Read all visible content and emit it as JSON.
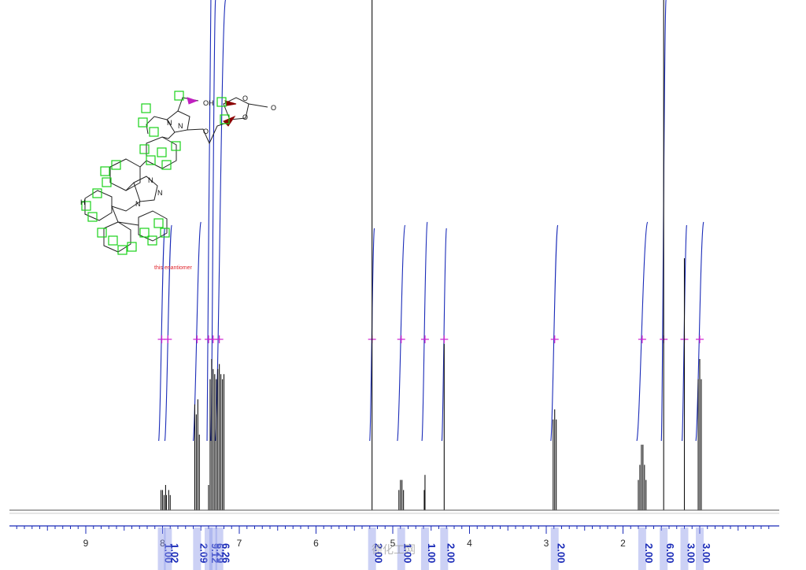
{
  "chart_data": {
    "type": "line",
    "title": "",
    "xlabel": "",
    "ylabel": "",
    "x_reversed": true,
    "xlim": [
      10.0,
      0.0
    ],
    "x_ticks": [
      {
        "value": 9,
        "label": "9"
      },
      {
        "value": 8,
        "label": "8"
      },
      {
        "value": 7,
        "label": "7"
      },
      {
        "value": 6,
        "label": "6"
      },
      {
        "value": 5,
        "label": "5"
      },
      {
        "value": 4,
        "label": "4"
      },
      {
        "value": 3,
        "label": "3"
      },
      {
        "value": 2,
        "label": "2"
      }
    ],
    "grid": false,
    "peaks": [
      {
        "ppm": 8.02,
        "h": 0.04
      },
      {
        "ppm": 8.0,
        "h": 0.04
      },
      {
        "ppm": 7.98,
        "h": 0.03
      },
      {
        "ppm": 7.96,
        "h": 0.05
      },
      {
        "ppm": 7.95,
        "h": 0.03
      },
      {
        "ppm": 7.92,
        "h": 0.04
      },
      {
        "ppm": 7.9,
        "h": 0.03
      },
      {
        "ppm": 7.58,
        "h": 0.21
      },
      {
        "ppm": 7.56,
        "h": 0.19
      },
      {
        "ppm": 7.54,
        "h": 0.22
      },
      {
        "ppm": 7.52,
        "h": 0.15
      },
      {
        "ppm": 7.4,
        "h": 0.05
      },
      {
        "ppm": 7.38,
        "h": 0.26
      },
      {
        "ppm": 7.36,
        "h": 0.3
      },
      {
        "ppm": 7.34,
        "h": 0.28
      },
      {
        "ppm": 7.32,
        "h": 0.27
      },
      {
        "ppm": 7.3,
        "h": 0.26
      },
      {
        "ppm": 7.28,
        "h": 0.28
      },
      {
        "ppm": 7.26,
        "h": 0.29
      },
      {
        "ppm": 7.24,
        "h": 0.27
      },
      {
        "ppm": 7.22,
        "h": 0.26
      },
      {
        "ppm": 7.2,
        "h": 0.27
      },
      {
        "ppm": 5.27,
        "h": 1.1
      },
      {
        "ppm": 4.92,
        "h": 0.04
      },
      {
        "ppm": 4.9,
        "h": 0.06
      },
      {
        "ppm": 4.88,
        "h": 0.06
      },
      {
        "ppm": 4.86,
        "h": 0.04
      },
      {
        "ppm": 4.59,
        "h": 0.04
      },
      {
        "ppm": 4.58,
        "h": 0.07
      },
      {
        "ppm": 4.33,
        "h": 0.33
      },
      {
        "ppm": 2.91,
        "h": 0.18
      },
      {
        "ppm": 2.89,
        "h": 0.2
      },
      {
        "ppm": 2.87,
        "h": 0.18
      },
      {
        "ppm": 1.8,
        "h": 0.06
      },
      {
        "ppm": 1.78,
        "h": 0.09
      },
      {
        "ppm": 1.76,
        "h": 0.13
      },
      {
        "ppm": 1.74,
        "h": 0.13
      },
      {
        "ppm": 1.72,
        "h": 0.09
      },
      {
        "ppm": 1.7,
        "h": 0.06
      },
      {
        "ppm": 1.47,
        "h": 1.15
      },
      {
        "ppm": 1.2,
        "h": 0.5
      },
      {
        "ppm": 1.02,
        "h": 0.26
      },
      {
        "ppm": 1.0,
        "h": 0.3
      },
      {
        "ppm": 0.98,
        "h": 0.26
      }
    ],
    "integrals": [
      {
        "ppm": 8.01,
        "from": 8.05,
        "to": 7.97,
        "label": "1.00"
      },
      {
        "ppm": 7.93,
        "from": 7.97,
        "to": 7.88,
        "label": "1.02"
      },
      {
        "ppm": 7.55,
        "from": 7.6,
        "to": 7.5,
        "label": "2.09"
      },
      {
        "ppm": 7.4,
        "from": 7.42,
        "to": 7.37,
        "label": "9.12"
      },
      {
        "ppm": 7.34,
        "from": 7.37,
        "to": 7.31,
        "label": "6.29"
      },
      {
        "ppm": 7.26,
        "from": 7.31,
        "to": 7.18,
        "label": "6.26"
      },
      {
        "ppm": 5.27,
        "from": 5.3,
        "to": 5.24,
        "label": "2.00"
      },
      {
        "ppm": 4.89,
        "from": 4.94,
        "to": 4.84,
        "label": "1.00"
      },
      {
        "ppm": 4.58,
        "from": 4.62,
        "to": 4.55,
        "label": "1.00"
      },
      {
        "ppm": 4.33,
        "from": 4.36,
        "to": 4.3,
        "label": "2.00"
      },
      {
        "ppm": 2.89,
        "from": 2.94,
        "to": 2.85,
        "label": "2.00"
      },
      {
        "ppm": 1.75,
        "from": 1.82,
        "to": 1.68,
        "label": "2.00"
      },
      {
        "ppm": 1.47,
        "from": 1.5,
        "to": 1.44,
        "label": "6.00"
      },
      {
        "ppm": 1.2,
        "from": 1.23,
        "to": 1.17,
        "label": "3.00"
      },
      {
        "ppm": 1.0,
        "from": 1.05,
        "to": 0.95,
        "label": "3.00"
      }
    ],
    "colors": {
      "integral": "#1a2bb8",
      "spectrum": "#111111",
      "peak_marker": "#d020d0",
      "label_band": "#8e98e8",
      "axis": "#2a2a2a"
    }
  },
  "annotation": {
    "enantiomer_note": "this enantiomer",
    "structure_atom_letters": [
      "H",
      "OH",
      "N",
      "N",
      "N",
      "N",
      "N",
      "O",
      "O",
      "O",
      "O"
    ]
  },
  "watermark_text": "德化工网"
}
